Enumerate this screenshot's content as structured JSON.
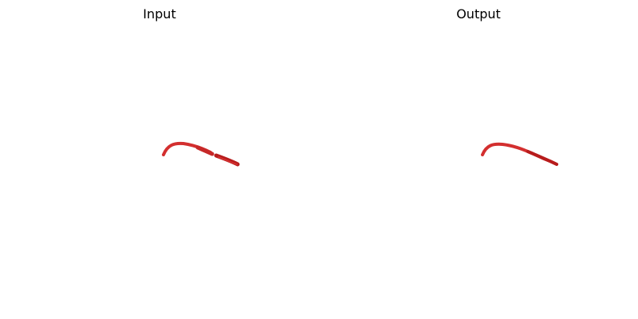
{
  "panels": [
    {
      "title": "Input"
    },
    {
      "title": "Output"
    }
  ],
  "colors": {
    "stroke_light": "#d32f2f",
    "stroke_dark": "#b71c1c",
    "background": "#ffffff"
  }
}
